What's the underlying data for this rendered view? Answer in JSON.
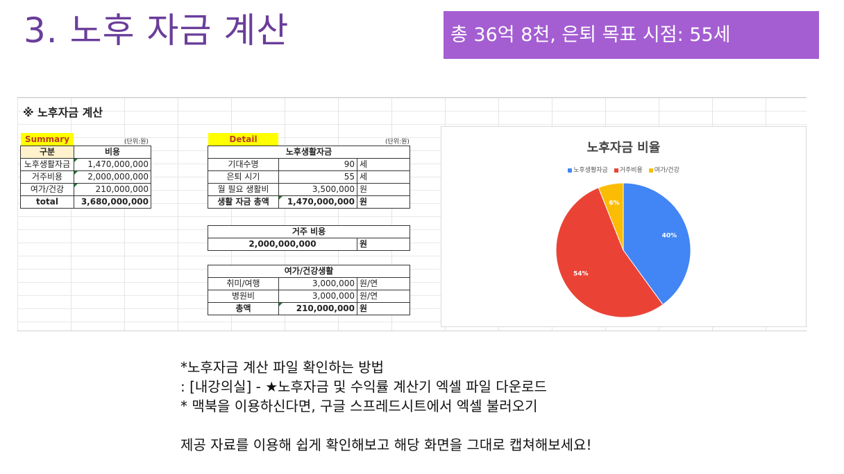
{
  "slide": {
    "title": "3. 노후 자금 계산",
    "badge": "총 36억 8천, 은퇴 목표 시점: 55세"
  },
  "sheet": {
    "title": "※ 노후자금 계산",
    "summary": {
      "tag": "Summary",
      "unit": "(단위:원)",
      "headers": [
        "구분",
        "비용"
      ],
      "rows": [
        {
          "label": "노후생활자금",
          "value": "1,470,000,000"
        },
        {
          "label": "거주비용",
          "value": "2,000,000,000"
        },
        {
          "label": "여가/건강",
          "value": "210,000,000"
        }
      ],
      "total": {
        "label": "total",
        "value": "3,680,000,000"
      }
    },
    "detail": {
      "tag": "Detail",
      "unit": "(단위:원)",
      "living": {
        "header": "노후생활자금",
        "rows": [
          {
            "label": "기대수명",
            "value": "90",
            "unit": "세"
          },
          {
            "label": "은퇴 시기",
            "value": "55",
            "unit": "세"
          },
          {
            "label": "월 필요 생활비",
            "value": "3,500,000",
            "unit": "원"
          }
        ],
        "total": {
          "label": "생활 자금 총액",
          "value": "1,470,000,000",
          "unit": "원"
        }
      },
      "housing": {
        "header": "거주 비용",
        "value": "2,000,000,000",
        "unit": "원"
      },
      "leisure": {
        "header": "여가/건강생활",
        "rows": [
          {
            "label": "취미/여행",
            "value": "3,000,000",
            "unit": "원/연"
          },
          {
            "label": "병원비",
            "value": "3,000,000",
            "unit": "원/연"
          }
        ],
        "total": {
          "label": "총액",
          "value": "210,000,000",
          "unit": "원"
        }
      }
    }
  },
  "chart_data": {
    "type": "pie",
    "title": "노후자금 비율",
    "legend_position": "top",
    "series": [
      {
        "name": "노후생활자금",
        "value": 40,
        "label": "40%",
        "color": "#4285f4"
      },
      {
        "name": "거주비용",
        "value": 54,
        "label": "54%",
        "color": "#ea4335"
      },
      {
        "name": "여가/건강",
        "value": 6,
        "label": "6%",
        "color": "#fbbc04"
      }
    ]
  },
  "notes": [
    "*노후자금 계산 파일 확인하는 방법",
    ": [내강의실] - ★노후자금 및 수익률 계산기 엑셀 파일 다운로드",
    "* 맥북을 이용하신다면, 구글 스프레드시트에서 엑셀 불러오기",
    "",
    "제공 자료를 이용해 쉽게 확인해보고 해당 화면을 그대로 캡쳐해보세요!"
  ]
}
